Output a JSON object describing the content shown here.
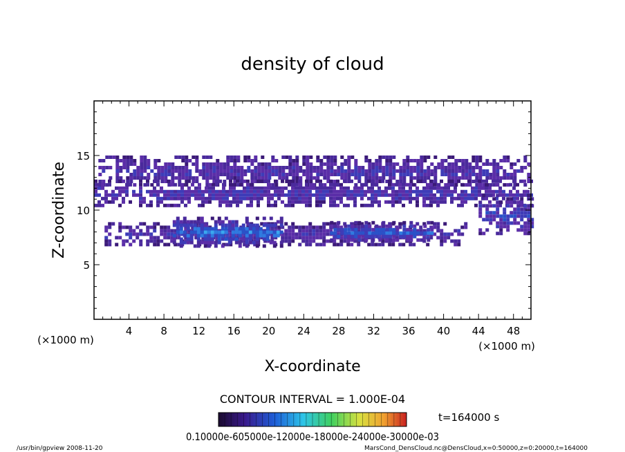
{
  "chart_data": {
    "type": "heatmap",
    "title": "density of cloud",
    "xlabel": "X-coordinate",
    "ylabel": "Z-coordinate",
    "x_unit_left": "(×1000 m)",
    "x_unit_right": "(×1000 m)",
    "xlim": [
      0,
      50
    ],
    "ylim": [
      0,
      20
    ],
    "x_ticks": [
      4,
      8,
      12,
      16,
      20,
      24,
      28,
      32,
      36,
      40,
      44,
      48
    ],
    "y_ticks": [
      5,
      10,
      15
    ],
    "contour_interval": "CONTOUR INTERVAL = 1.000E-04",
    "time_label": "t=164000 s",
    "colorbar_labels_text": "0.10000e-605000e-12000e-18000e-24000e-30000e-03",
    "colorbar_colors": [
      "#1a0a2e",
      "#3a1a8c",
      "#1e5fd8",
      "#2ec4e8",
      "#3fd060",
      "#d8e040",
      "#f0a030",
      "#c82020"
    ],
    "footer_left": "/usr/bin/gpview  2008-11-20",
    "footer_right": "MarsCond_DensCloud.nc@DensCloud,x=0:50000,z=0:20000,t=164000",
    "cloud_layers": [
      {
        "x0": 0.5,
        "x1": 49.8,
        "z0": 12.3,
        "z1": 15.0,
        "level": 0.2
      },
      {
        "x0": 0.0,
        "x1": 50.0,
        "z0": 10.5,
        "z1": 12.8,
        "level": 0.25
      },
      {
        "x0": 1.2,
        "x1": 42.5,
        "z0": 7.0,
        "z1": 8.9,
        "level": 0.2
      },
      {
        "x0": 9.0,
        "x1": 21.5,
        "z0": 6.8,
        "z1": 9.4,
        "level": 0.55
      },
      {
        "x0": 27.0,
        "x1": 38.5,
        "z0": 7.2,
        "z1": 9.0,
        "level": 0.45
      },
      {
        "x0": 44.0,
        "x1": 50.0,
        "z0": 7.8,
        "z1": 11.5,
        "level": 0.3
      }
    ]
  }
}
